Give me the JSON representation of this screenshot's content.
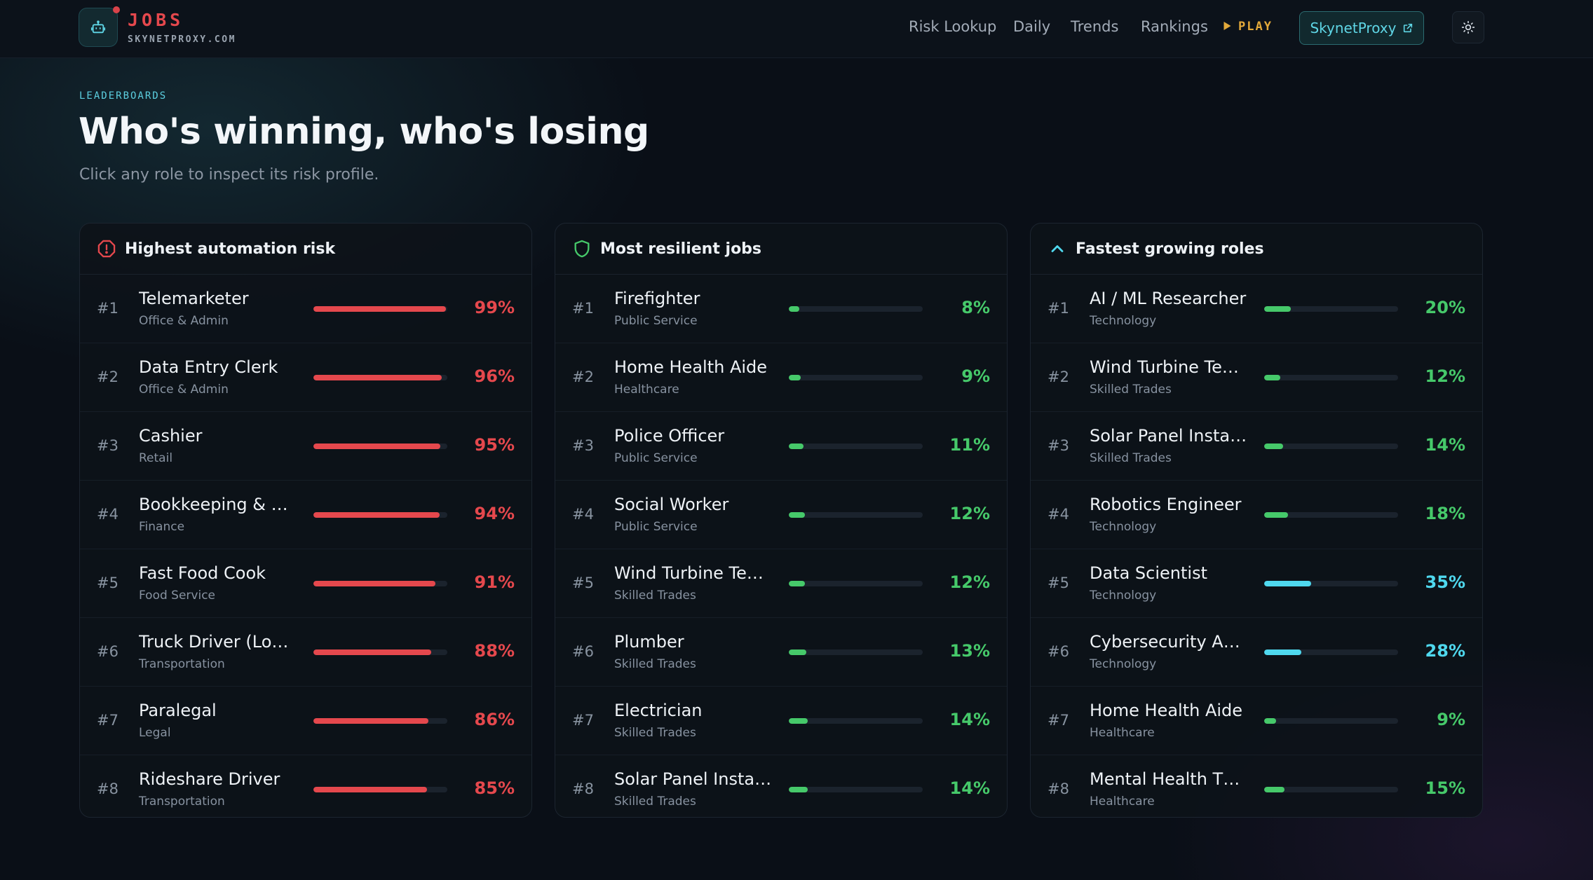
{
  "colors": {
    "risk": "#e5484d",
    "resilient": "#46c96a",
    "growth_high": "#4fd8ee",
    "accent": "#5ccfe0",
    "play": "#e3a93a"
  },
  "header": {
    "brand_title": "JOBS",
    "brand_sub": "SKYNETPROXY.COM",
    "nav": [
      "Risk Lookup",
      "Daily",
      "Trends",
      "Rankings"
    ],
    "play_label": "PLAY",
    "external_button": "SkynetProxy",
    "icons": {
      "logo": "robot-icon",
      "play": "play-triangle-icon",
      "external": "external-link-icon",
      "theme": "sun-icon"
    }
  },
  "hero": {
    "eyebrow": "LEADERBOARDS",
    "title": "Who's winning, who's losing",
    "subtitle": "Click any role to inspect its risk profile."
  },
  "boards": [
    {
      "title": "Highest automation risk",
      "icon": "alert-circle-icon",
      "color_key": "risk",
      "rows": [
        {
          "rank": "#1",
          "name": "Telemarketer",
          "category": "Office & Admin",
          "value": 99,
          "label": "99%"
        },
        {
          "rank": "#2",
          "name": "Data Entry Clerk",
          "category": "Office & Admin",
          "value": 96,
          "label": "96%"
        },
        {
          "rank": "#3",
          "name": "Cashier",
          "category": "Retail",
          "value": 95,
          "label": "95%"
        },
        {
          "rank": "#4",
          "name": "Bookkeeping & Ac…",
          "category": "Finance",
          "value": 94,
          "label": "94%"
        },
        {
          "rank": "#5",
          "name": "Fast Food Cook",
          "category": "Food Service",
          "value": 91,
          "label": "91%"
        },
        {
          "rank": "#6",
          "name": "Truck Driver (Long…",
          "category": "Transportation",
          "value": 88,
          "label": "88%"
        },
        {
          "rank": "#7",
          "name": "Paralegal",
          "category": "Legal",
          "value": 86,
          "label": "86%"
        },
        {
          "rank": "#8",
          "name": "Rideshare Driver",
          "category": "Transportation",
          "value": 85,
          "label": "85%"
        }
      ]
    },
    {
      "title": "Most resilient jobs",
      "icon": "shield-icon",
      "color_key": "resilient",
      "rows": [
        {
          "rank": "#1",
          "name": "Firefighter",
          "category": "Public Service",
          "value": 8,
          "label": "8%"
        },
        {
          "rank": "#2",
          "name": "Home Health Aide",
          "category": "Healthcare",
          "value": 9,
          "label": "9%"
        },
        {
          "rank": "#3",
          "name": "Police Officer",
          "category": "Public Service",
          "value": 11,
          "label": "11%"
        },
        {
          "rank": "#4",
          "name": "Social Worker",
          "category": "Public Service",
          "value": 12,
          "label": "12%"
        },
        {
          "rank": "#5",
          "name": "Wind Turbine Tec…",
          "category": "Skilled Trades",
          "value": 12,
          "label": "12%"
        },
        {
          "rank": "#6",
          "name": "Plumber",
          "category": "Skilled Trades",
          "value": 13,
          "label": "13%"
        },
        {
          "rank": "#7",
          "name": "Electrician",
          "category": "Skilled Trades",
          "value": 14,
          "label": "14%"
        },
        {
          "rank": "#8",
          "name": "Solar Panel Installer",
          "category": "Skilled Trades",
          "value": 14,
          "label": "14%"
        }
      ]
    },
    {
      "title": "Fastest growing roles",
      "icon": "chevron-up-icon",
      "color_key": "resilient",
      "rows": [
        {
          "rank": "#1",
          "name": "AI / ML Researcher",
          "category": "Technology",
          "value": 20,
          "label": "20%"
        },
        {
          "rank": "#2",
          "name": "Wind Turbine Tec…",
          "category": "Skilled Trades",
          "value": 12,
          "label": "12%"
        },
        {
          "rank": "#3",
          "name": "Solar Panel Installer",
          "category": "Skilled Trades",
          "value": 14,
          "label": "14%"
        },
        {
          "rank": "#4",
          "name": "Robotics Engineer",
          "category": "Technology",
          "value": 18,
          "label": "18%"
        },
        {
          "rank": "#5",
          "name": "Data Scientist",
          "category": "Technology",
          "value": 35,
          "label": "35%",
          "color_key": "growth_high"
        },
        {
          "rank": "#6",
          "name": "Cybersecurity Ana…",
          "category": "Technology",
          "value": 28,
          "label": "28%",
          "color_key": "growth_high"
        },
        {
          "rank": "#7",
          "name": "Home Health Aide",
          "category": "Healthcare",
          "value": 9,
          "label": "9%"
        },
        {
          "rank": "#8",
          "name": "Mental Health Th…",
          "category": "Healthcare",
          "value": 15,
          "label": "15%"
        }
      ]
    }
  ]
}
